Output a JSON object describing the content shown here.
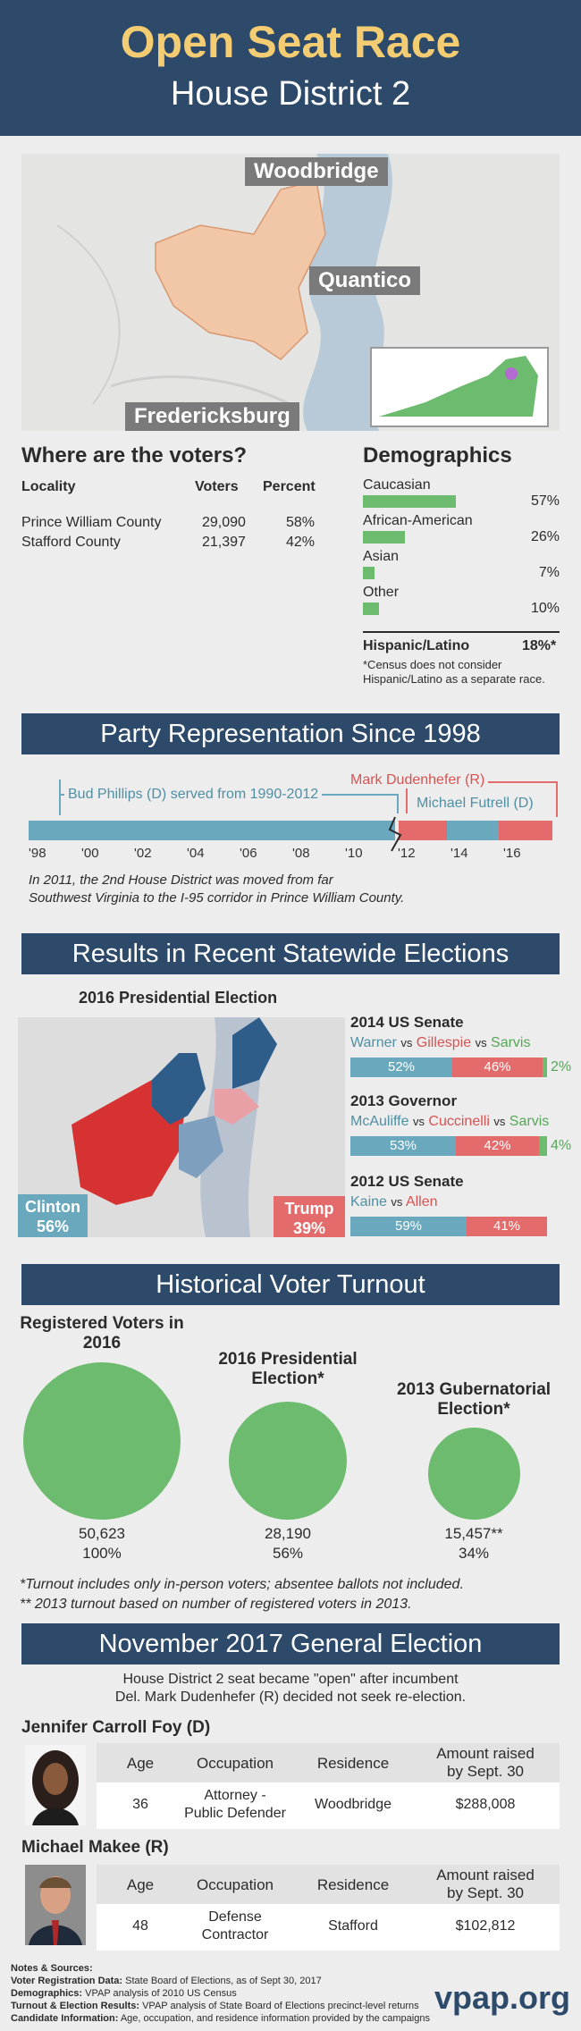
{
  "header": {
    "title": "Open Seat Race",
    "subtitle": "House District 2"
  },
  "map_labels": {
    "woodbridge": "Woodbridge",
    "quantico": "Quantico",
    "fredericksburg": "Fredericksburg"
  },
  "voters": {
    "heading": "Where are the voters?",
    "columns": [
      "Locality",
      "Voters",
      "Percent"
    ],
    "rows": [
      {
        "locality": "Prince William County",
        "voters": "29,090",
        "percent": "58%"
      },
      {
        "locality": "Stafford County",
        "voters": "21,397",
        "percent": "42%"
      }
    ]
  },
  "demographics": {
    "heading": "Demographics",
    "items": [
      {
        "label": "Caucasian",
        "pct": "57%",
        "value": 57
      },
      {
        "label": "African-American",
        "pct": "26%",
        "value": 26
      },
      {
        "label": "Asian",
        "pct": "7%",
        "value": 7
      },
      {
        "label": "Other",
        "pct": "10%",
        "value": 10
      }
    ],
    "hispanic_label": "Hispanic/Latino",
    "hispanic_pct": "18%*",
    "footnote_line1": "*Census does not consider",
    "footnote_line2": "Hispanic/Latino as a separate race."
  },
  "party": {
    "banner": "Party Representation Since 1998",
    "phillips": "Bud Phillips (D) served from 1990-2012",
    "dudenhefer": "Mark Dudenhefer (R)",
    "futrell": "Michael Futrell (D)",
    "ticks": [
      "'98",
      "'00",
      "'02",
      "'04",
      "'06",
      "'08",
      "'10",
      "'12",
      "'14",
      "'16"
    ],
    "note_line1": "In 2011, the 2nd House District was moved from far",
    "note_line2": "Southwest Virginia to the I-95 corridor in Prince William County.",
    "colors": {
      "dem": "#6aa9bd",
      "rep": "#e46b6b"
    }
  },
  "statewide": {
    "banner": "Results in Recent Statewide Elections",
    "pres_title": "2016 Presidential Election",
    "clinton_name": "Clinton",
    "clinton_pct": "56%",
    "trump_name": "Trump",
    "trump_pct": "39%",
    "races": [
      {
        "title": "2014 US Senate",
        "dem": "Warner",
        "rep": "Gillespie",
        "third": "Sarvis",
        "vs": "vs",
        "dem_pct": "52%",
        "rep_pct": "46%",
        "third_pct": "2%",
        "dem_val": 52,
        "rep_val": 46,
        "third_val": 2
      },
      {
        "title": "2013 Governor",
        "dem": "McAuliffe",
        "rep": "Cuccinelli",
        "third": "Sarvis",
        "vs": "vs",
        "dem_pct": "53%",
        "rep_pct": "42%",
        "third_pct": "4%",
        "dem_val": 53,
        "rep_val": 42,
        "third_val": 4
      },
      {
        "title": "2012 US Senate",
        "dem": "Kaine",
        "rep": "Allen",
        "vs": "vs",
        "dem_pct": "59%",
        "rep_pct": "41%",
        "dem_val": 59,
        "rep_val": 41
      }
    ]
  },
  "turnout": {
    "banner": "Historical Voter Turnout",
    "items": [
      {
        "title": "Registered Voters in 2016",
        "count": "50,623",
        "pct": "100%",
        "value": 100
      },
      {
        "title": "2016 Presidential Election*",
        "count": "28,190",
        "pct": "56%",
        "value": 56
      },
      {
        "title": "2013 Gubernatorial Election*",
        "count": "15,457**",
        "pct": "34%",
        "value": 34
      }
    ],
    "note1": "*Turnout includes only in-person voters; absentee ballots not included.",
    "note2": "** 2013 turnout based on number of registered voters in 2013."
  },
  "general": {
    "banner": "November 2017 General Election",
    "intro_line1": "House District 2 seat became \"open\" after incumbent",
    "intro_line2": "Del. Mark Dudenhefer (R) decided not seek re-election.",
    "columns": {
      "age": "Age",
      "occupation": "Occupation",
      "residence": "Residence",
      "amount_line1": "Amount raised",
      "amount_line2": "by Sept. 30"
    },
    "candidates": [
      {
        "name": "Jennifer Carroll Foy (D)",
        "age": "36",
        "occ1": "Attorney -",
        "occ2": "Public Defender",
        "residence": "Woodbridge",
        "amount": "$288,008"
      },
      {
        "name": "Michael Makee (R)",
        "age": "48",
        "occ1": "Defense",
        "occ2": "Contractor",
        "residence": "Stafford",
        "amount": "$102,812"
      }
    ]
  },
  "notes": {
    "heading": "Notes & Sources:",
    "lines": [
      {
        "label": "Voter Registration Data:",
        "text": " State Board of Elections, as of Sept 30, 2017"
      },
      {
        "label": "Demographics:",
        "text": " VPAP analysis of 2010 US Census"
      },
      {
        "label": "Turnout & Election Results:",
        "text": " VPAP analysis of State Board of Elections precinct-level returns"
      },
      {
        "label": "Candidate Information:",
        "text": " Age, occupation, and residence information provided by the campaigns"
      }
    ],
    "brand": "vpap.org"
  }
}
